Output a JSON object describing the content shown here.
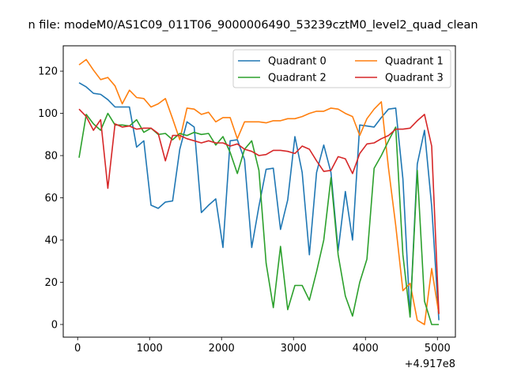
{
  "chart_data": {
    "type": "line",
    "title": "n file: modeM0/AS1C09_011T06_9000006490_53239cztM0_level2_quad_clean",
    "x_offset_label": "+4.917e8",
    "xlim": [
      -200,
      5250
    ],
    "ylim": [
      -6,
      132
    ],
    "x_ticks": [
      0,
      1000,
      2000,
      3000,
      4000,
      5000
    ],
    "x_tick_labels": [
      "0",
      "1000",
      "2000",
      "3000",
      "4000",
      "5000"
    ],
    "y_ticks": [
      0,
      20,
      40,
      60,
      80,
      100,
      120
    ],
    "y_tick_labels": [
      "0",
      "20",
      "40",
      "60",
      "80",
      "100",
      "120"
    ],
    "legend_position": "upper right",
    "x": [
      20,
      120,
      220,
      320,
      420,
      520,
      620,
      720,
      820,
      920,
      1020,
      1120,
      1220,
      1320,
      1420,
      1520,
      1620,
      1720,
      1820,
      1920,
      2020,
      2120,
      2220,
      2320,
      2420,
      2520,
      2620,
      2720,
      2820,
      2920,
      3020,
      3120,
      3220,
      3320,
      3420,
      3520,
      3620,
      3720,
      3820,
      3920,
      4020,
      4120,
      4220,
      4320,
      4420,
      4520,
      4620,
      4720,
      4820,
      4920,
      5020
    ],
    "series": [
      {
        "name": "Quadrant 0",
        "color": "#1f77b4",
        "values": [
          114.5,
          112.5,
          109.5,
          109,
          106.5,
          103,
          103,
          103,
          84,
          87,
          56.5,
          55,
          58,
          58.5,
          83,
          96,
          93.5,
          53,
          56.5,
          59.5,
          36.5,
          87,
          87.5,
          78,
          36.5,
          56,
          73.5,
          74,
          45,
          59,
          89,
          72,
          33,
          72,
          85,
          72,
          35,
          63,
          40,
          94.5,
          94,
          93.5,
          98,
          102,
          102.5,
          69,
          4,
          76,
          92,
          56,
          2
        ]
      },
      {
        "name": "Quadrant 1",
        "color": "#ff7f0e",
        "values": [
          123,
          125.5,
          120.5,
          116,
          117,
          113,
          104.5,
          111,
          107.5,
          107,
          103,
          104.5,
          107,
          97.5,
          87.5,
          102.5,
          102,
          99.5,
          100.5,
          96,
          98,
          98,
          88,
          96,
          96,
          96,
          95.5,
          96.5,
          96.5,
          97.5,
          97.5,
          98.5,
          100,
          101,
          101,
          102.5,
          102,
          100,
          98.5,
          89.5,
          97.5,
          102,
          105.5,
          74,
          47,
          16,
          19.5,
          2,
          0,
          26.5,
          5
        ]
      },
      {
        "name": "Quadrant 2",
        "color": "#2ca02c",
        "values": [
          79,
          99.5,
          95,
          92,
          100,
          94.5,
          94.5,
          94,
          97,
          91,
          93,
          90,
          90.5,
          87.5,
          90.5,
          89.5,
          91,
          90,
          90.5,
          85,
          89,
          81.5,
          71.5,
          83,
          87,
          73,
          29,
          8,
          37,
          7,
          18.5,
          18.5,
          11.5,
          25,
          40,
          69.5,
          33,
          13.5,
          4,
          20,
          31,
          74,
          80,
          87,
          93.5,
          33,
          3.5,
          73,
          11,
          0,
          0
        ]
      },
      {
        "name": "Quadrant 3",
        "color": "#d62728",
        "values": [
          102,
          98.5,
          92,
          97,
          64.5,
          95,
          93.5,
          94,
          92.5,
          93,
          93,
          90.5,
          77.5,
          89.5,
          89.5,
          88,
          87,
          86,
          87,
          86,
          86,
          84.5,
          85.5,
          83,
          82,
          80,
          80.5,
          82.5,
          82.5,
          82,
          81,
          84.5,
          83,
          77.5,
          72.5,
          73,
          79.5,
          78.5,
          71.5,
          81,
          85.5,
          86,
          88,
          89.5,
          92.5,
          92.5,
          93,
          96.5,
          99.5,
          84.5,
          5
        ]
      }
    ]
  }
}
